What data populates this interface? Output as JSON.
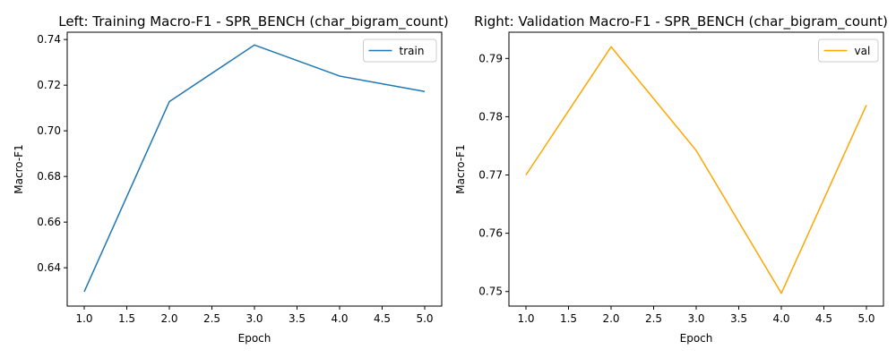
{
  "chart_data": [
    {
      "type": "line",
      "title": "Left: Training Macro-F1 - SPR_BENCH (char_bigram_count)",
      "xlabel": "Epoch",
      "ylabel": "Macro-F1",
      "x": [
        1,
        2,
        3,
        4,
        5
      ],
      "series": [
        {
          "name": "train",
          "color": "#1f77b4",
          "values": [
            0.6295,
            0.7128,
            0.7376,
            0.724,
            0.7172
          ]
        }
      ],
      "xlim": [
        0.8,
        5.2
      ],
      "ylim": [
        0.6232,
        0.7432
      ],
      "xticks": [
        "1.0",
        "1.5",
        "2.0",
        "2.5",
        "3.0",
        "3.5",
        "4.0",
        "4.5",
        "5.0"
      ],
      "yticks": [
        "0.64",
        "0.66",
        "0.68",
        "0.70",
        "0.72",
        "0.74"
      ],
      "legend": "top-right",
      "grid": false
    },
    {
      "type": "line",
      "title": "Right: Validation Macro-F1 - SPR_BENCH (char_bigram_count)",
      "xlabel": "Epoch",
      "ylabel": "Macro-F1",
      "x": [
        1,
        2,
        3,
        4,
        5
      ],
      "series": [
        {
          "name": "val",
          "color": "#ffa500",
          "values": [
            0.77,
            0.792,
            0.7742,
            0.7497,
            0.782
          ]
        }
      ],
      "xlim": [
        0.8,
        5.2
      ],
      "ylim": [
        0.7475,
        0.7945
      ],
      "xticks": [
        "1.0",
        "1.5",
        "2.0",
        "2.5",
        "3.0",
        "3.5",
        "4.0",
        "4.5",
        "5.0"
      ],
      "yticks": [
        "0.75",
        "0.76",
        "0.77",
        "0.78",
        "0.79"
      ],
      "legend": "top-right",
      "grid": false
    }
  ]
}
